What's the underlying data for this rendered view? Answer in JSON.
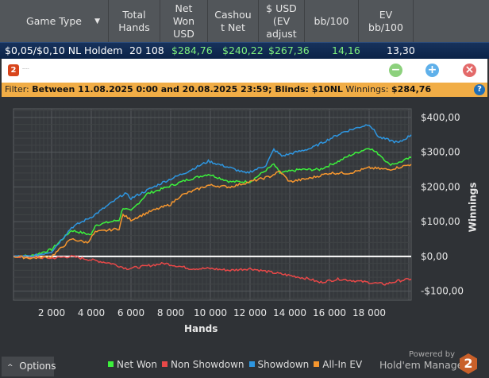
{
  "table": {
    "columns": [
      "Game Type",
      "Total\nHands",
      "Net\nWon\nUSD",
      "Cashou\nt Net",
      "$ USD\n(EV\nadjust",
      "bb/100",
      "EV\nbb/100"
    ],
    "row": {
      "game": "$0,05/$0,10 NL Holdem",
      "hands": "20 108",
      "net_won": "$284,76",
      "cashout_net": "$240,22",
      "ev_adjusted": "$267,36",
      "bb100": "14,16",
      "ev_bb100": "13,30"
    }
  },
  "toolbar": {
    "logo": "2",
    "title": "----",
    "minus": "−",
    "plus": "+",
    "close": "×"
  },
  "filter": {
    "label": "Filter:",
    "value": "Between 11.08.2025 0:00 and 20.08.2025 23:59; Blinds: $10NL",
    "winnings_label": "Winnings:",
    "winnings_value": "$284,76",
    "help": "?"
  },
  "footer": {
    "options": "Options",
    "powered_by": "Powered by",
    "brand": "Hold'em Manager",
    "brand_logo": "2"
  },
  "chart_data": {
    "type": "line",
    "xlabel": "Hands",
    "ylabel": "Winnings",
    "xlim": [
      80,
      20120
    ],
    "ylim": [
      -126,
      425
    ],
    "xticks": [
      2000,
      4000,
      6000,
      8000,
      10000,
      12000,
      14000,
      16000,
      18000
    ],
    "xtick_labels": [
      "2 000",
      "4 000",
      "6 000",
      "8 000",
      "10 000",
      "12 000",
      "14 000",
      "16 000",
      "18 000"
    ],
    "yticks": [
      -100,
      0,
      100,
      200,
      300,
      400
    ],
    "ytick_labels": [
      "-$100,00",
      "$0,00",
      "$100,00",
      "$200,00",
      "$300,00",
      "$400,00"
    ],
    "grid": true,
    "legend": "bottom",
    "series": [
      {
        "name": "Net Won",
        "color": "#3cf03c",
        "x": [
          100,
          1000,
          2000,
          3000,
          4000,
          4200,
          5400,
          5600,
          6000,
          6800,
          7600,
          8800,
          9900,
          11000,
          12000,
          13200,
          13500,
          14500,
          15500,
          16500,
          17000,
          18000,
          18600,
          19000,
          19500,
          20120
        ],
        "y": [
          0,
          2,
          20,
          75,
          62,
          90,
          105,
          140,
          130,
          180,
          195,
          220,
          237,
          215,
          215,
          265,
          240,
          250,
          250,
          275,
          290,
          313,
          290,
          265,
          270,
          285
        ]
      },
      {
        "name": "Non Showdown",
        "color": "#e84848",
        "x": [
          100,
          2000,
          3000,
          4000,
          5000,
          5800,
          6500,
          7700,
          9000,
          10000,
          11000,
          12000,
          13000,
          14000,
          15000,
          15500,
          16500,
          18000,
          18800,
          19500,
          20120
        ],
        "y": [
          0,
          -5,
          0,
          -10,
          -20,
          -35,
          -30,
          -20,
          -35,
          -35,
          -40,
          -35,
          -45,
          -55,
          -65,
          -75,
          -65,
          -75,
          -80,
          -70,
          -65
        ]
      },
      {
        "name": "Showdown",
        "color": "#2e96e0",
        "x": [
          100,
          1000,
          2000,
          3000,
          4100,
          5700,
          6000,
          7600,
          8800,
          9900,
          11000,
          11800,
          12800,
          13200,
          13600,
          15100,
          15900,
          16700,
          18000,
          18500,
          19500,
          20120
        ],
        "y": [
          0,
          0,
          14,
          83,
          117,
          182,
          167,
          213,
          243,
          274,
          255,
          239,
          262,
          308,
          289,
          312,
          335,
          358,
          381,
          343,
          327,
          350
        ]
      },
      {
        "name": "All-In EV",
        "color": "#f5962e",
        "x": [
          100,
          1000,
          2000,
          3000,
          3800,
          4200,
          5400,
          5600,
          6000,
          7000,
          8000,
          8500,
          9900,
          11000,
          12000,
          13000,
          13500,
          14000,
          15000,
          16000,
          17000,
          18000,
          19000,
          20120
        ],
        "y": [
          0,
          -5,
          0,
          50,
          40,
          70,
          80,
          120,
          105,
          130,
          150,
          175,
          205,
          200,
          215,
          230,
          245,
          215,
          225,
          240,
          240,
          255,
          250,
          265
        ]
      }
    ]
  }
}
